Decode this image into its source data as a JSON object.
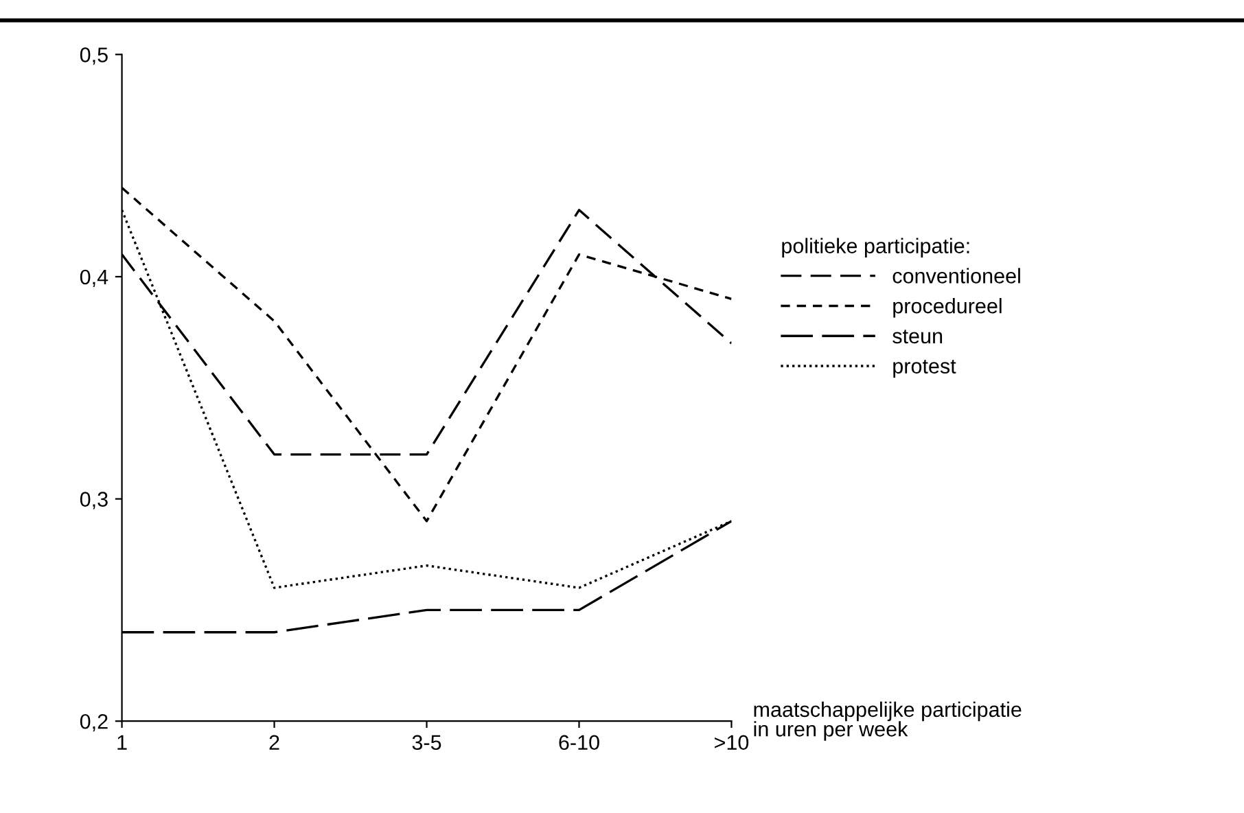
{
  "chart_data": {
    "type": "line",
    "categories": [
      "1",
      "2",
      "3-5",
      "6-10",
      ">10"
    ],
    "xlabel": "maatschappelijke participatie\nin uren per week",
    "legend_title": "politieke participatie:",
    "series": [
      {
        "name": "conventioneel",
        "color": "#000000",
        "line_style": "dashed",
        "values": [
          0.41,
          0.32,
          0.32,
          0.43,
          0.37
        ]
      },
      {
        "name": "procedureel",
        "color": "#000000",
        "line_style": "dashed",
        "values": [
          0.44,
          0.38,
          0.29,
          0.41,
          0.39
        ]
      },
      {
        "name": "steun",
        "color": "#000000",
        "line_style": "dashed",
        "values": [
          0.24,
          0.24,
          0.25,
          0.25,
          0.29
        ]
      },
      {
        "name": "protest",
        "color": "#000000",
        "line_style": "dotted",
        "values": [
          0.43,
          0.26,
          0.27,
          0.26,
          0.29
        ]
      }
    ],
    "ylim": [
      0.2,
      0.5
    ],
    "yticks": [
      {
        "value": 0.2,
        "label": "0,2"
      },
      {
        "value": 0.3,
        "label": "0,3"
      },
      {
        "value": 0.4,
        "label": "0,4"
      },
      {
        "value": 0.5,
        "label": "0,5"
      }
    ],
    "grid": false,
    "legend": "right",
    "marker": "none"
  }
}
